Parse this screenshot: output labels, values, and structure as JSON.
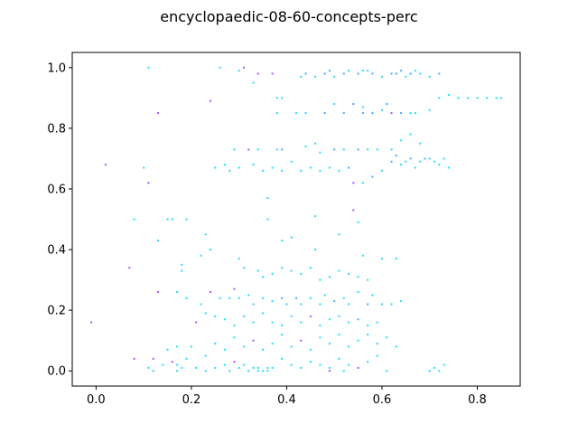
{
  "chart_data": {
    "type": "scatter",
    "title": "encyclopaedic-08-60-concepts-perc",
    "xlabel": "",
    "ylabel": "",
    "xlim": [
      -0.05,
      0.89
    ],
    "ylim": [
      -0.05,
      1.05
    ],
    "x_ticks": [
      0.0,
      0.2,
      0.4,
      0.6,
      0.8
    ],
    "y_ticks": [
      0.0,
      0.2,
      0.4,
      0.6,
      0.8,
      1.0
    ],
    "x_tick_labels": [
      "0.0",
      "0.2",
      "0.4",
      "0.6",
      "0.8"
    ],
    "y_tick_labels": [
      "0.0",
      "0.2",
      "0.4",
      "0.6",
      "0.8",
      "1.0"
    ],
    "grid": false,
    "colormap": "cool",
    "marker_size": "tiny",
    "colors": {
      "cyan": "#22ddff",
      "azure": "#44aaff",
      "violet": "#aa55ff",
      "magenta": "#dd44ff"
    },
    "points": [
      [
        0.11,
        1.0,
        0
      ],
      [
        0.26,
        1.0,
        0
      ],
      [
        0.31,
        1.0,
        2
      ],
      [
        0.33,
        0.95,
        0
      ],
      [
        0.3,
        0.99,
        0
      ],
      [
        0.34,
        0.98,
        2
      ],
      [
        0.37,
        0.98,
        2
      ],
      [
        0.43,
        0.97,
        0
      ],
      [
        0.44,
        0.98,
        1
      ],
      [
        0.46,
        0.97,
        0
      ],
      [
        0.48,
        0.98,
        1
      ],
      [
        0.5,
        0.97,
        0
      ],
      [
        0.52,
        0.98,
        1
      ],
      [
        0.53,
        0.99,
        0
      ],
      [
        0.55,
        0.98,
        1
      ],
      [
        0.56,
        0.99,
        0
      ],
      [
        0.58,
        0.98,
        1
      ],
      [
        0.6,
        0.97,
        0
      ],
      [
        0.62,
        0.98,
        1
      ],
      [
        0.64,
        0.99,
        1
      ],
      [
        0.65,
        0.97,
        0
      ],
      [
        0.66,
        0.98,
        1
      ],
      [
        0.68,
        0.98,
        0
      ],
      [
        0.7,
        0.97,
        0
      ],
      [
        0.72,
        0.98,
        1
      ],
      [
        0.57,
        0.99,
        0
      ],
      [
        0.63,
        0.98,
        1
      ],
      [
        0.67,
        0.99,
        0
      ],
      [
        0.49,
        0.99,
        1
      ],
      [
        0.38,
        0.9,
        0
      ],
      [
        0.39,
        0.9,
        0
      ],
      [
        0.24,
        0.89,
        2
      ],
      [
        0.13,
        0.85,
        2
      ],
      [
        0.38,
        0.85,
        0
      ],
      [
        0.42,
        0.85,
        0
      ],
      [
        0.44,
        0.85,
        0
      ],
      [
        0.48,
        0.85,
        1
      ],
      [
        0.5,
        0.88,
        0
      ],
      [
        0.52,
        0.85,
        1
      ],
      [
        0.54,
        0.88,
        1
      ],
      [
        0.56,
        0.87,
        0
      ],
      [
        0.58,
        0.85,
        1
      ],
      [
        0.6,
        0.86,
        0
      ],
      [
        0.62,
        0.85,
        2
      ],
      [
        0.64,
        0.85,
        1
      ],
      [
        0.66,
        0.85,
        0
      ],
      [
        0.67,
        0.85,
        0
      ],
      [
        0.7,
        0.86,
        0
      ],
      [
        0.72,
        0.9,
        0
      ],
      [
        0.74,
        0.91,
        0
      ],
      [
        0.76,
        0.9,
        0
      ],
      [
        0.78,
        0.9,
        0
      ],
      [
        0.8,
        0.9,
        0
      ],
      [
        0.82,
        0.9,
        0
      ],
      [
        0.84,
        0.9,
        0
      ],
      [
        0.85,
        0.9,
        0
      ],
      [
        0.61,
        0.88,
        1
      ],
      [
        0.56,
        0.85,
        1
      ],
      [
        0.29,
        0.73,
        0
      ],
      [
        0.32,
        0.73,
        2
      ],
      [
        0.34,
        0.73,
        0
      ],
      [
        0.38,
        0.73,
        0
      ],
      [
        0.39,
        0.73,
        1
      ],
      [
        0.44,
        0.74,
        0
      ],
      [
        0.46,
        0.75,
        0
      ],
      [
        0.47,
        0.72,
        0
      ],
      [
        0.5,
        0.73,
        1
      ],
      [
        0.52,
        0.73,
        0
      ],
      [
        0.55,
        0.73,
        1
      ],
      [
        0.57,
        0.73,
        0
      ],
      [
        0.59,
        0.73,
        0
      ],
      [
        0.62,
        0.73,
        0
      ],
      [
        0.64,
        0.76,
        0
      ],
      [
        0.66,
        0.78,
        0
      ],
      [
        0.68,
        0.75,
        0
      ],
      [
        0.25,
        0.67,
        0
      ],
      [
        0.27,
        0.68,
        0
      ],
      [
        0.28,
        0.66,
        0
      ],
      [
        0.3,
        0.67,
        0
      ],
      [
        0.33,
        0.68,
        0
      ],
      [
        0.35,
        0.66,
        0
      ],
      [
        0.37,
        0.67,
        0
      ],
      [
        0.39,
        0.66,
        0
      ],
      [
        0.41,
        0.69,
        0
      ],
      [
        0.43,
        0.66,
        0
      ],
      [
        0.45,
        0.67,
        0
      ],
      [
        0.47,
        0.66,
        0
      ],
      [
        0.49,
        0.67,
        0
      ],
      [
        0.51,
        0.66,
        0
      ],
      [
        0.53,
        0.67,
        1
      ],
      [
        0.54,
        0.62,
        2
      ],
      [
        0.56,
        0.62,
        0
      ],
      [
        0.58,
        0.64,
        1
      ],
      [
        0.6,
        0.66,
        0
      ],
      [
        0.62,
        0.69,
        1
      ],
      [
        0.64,
        0.68,
        0
      ],
      [
        0.66,
        0.7,
        1
      ],
      [
        0.68,
        0.69,
        0
      ],
      [
        0.7,
        0.7,
        0
      ],
      [
        0.72,
        0.68,
        0
      ],
      [
        0.74,
        0.67,
        0
      ],
      [
        0.02,
        0.68,
        2
      ],
      [
        0.1,
        0.67,
        0
      ],
      [
        0.11,
        0.62,
        2
      ],
      [
        0.63,
        0.71,
        1
      ],
      [
        0.65,
        0.69,
        0
      ],
      [
        0.67,
        0.67,
        0
      ],
      [
        0.69,
        0.7,
        1
      ],
      [
        0.71,
        0.69,
        0
      ],
      [
        0.73,
        0.7,
        0
      ],
      [
        0.36,
        0.57,
        0
      ],
      [
        0.46,
        0.51,
        0
      ],
      [
        0.54,
        0.53,
        2
      ],
      [
        0.55,
        0.49,
        0
      ],
      [
        0.08,
        0.5,
        0
      ],
      [
        0.15,
        0.5,
        0
      ],
      [
        0.16,
        0.5,
        0
      ],
      [
        0.19,
        0.5,
        0
      ],
      [
        0.36,
        0.5,
        0
      ],
      [
        0.23,
        0.45,
        0
      ],
      [
        0.13,
        0.43,
        0
      ],
      [
        0.24,
        0.4,
        0
      ],
      [
        0.39,
        0.43,
        0
      ],
      [
        0.41,
        0.44,
        0
      ],
      [
        0.46,
        0.4,
        0
      ],
      [
        0.51,
        0.45,
        0
      ],
      [
        0.56,
        0.38,
        0
      ],
      [
        0.6,
        0.37,
        0
      ],
      [
        0.63,
        0.37,
        0
      ],
      [
        0.07,
        0.34,
        2
      ],
      [
        0.18,
        0.35,
        0
      ],
      [
        0.18,
        0.33,
        0
      ],
      [
        0.22,
        0.38,
        0
      ],
      [
        0.3,
        0.37,
        0
      ],
      [
        0.31,
        0.34,
        0
      ],
      [
        0.34,
        0.33,
        0
      ],
      [
        0.35,
        0.31,
        0
      ],
      [
        0.37,
        0.32,
        0
      ],
      [
        0.39,
        0.34,
        0
      ],
      [
        0.41,
        0.33,
        0
      ],
      [
        0.43,
        0.32,
        0
      ],
      [
        0.45,
        0.34,
        0
      ],
      [
        0.47,
        0.3,
        0
      ],
      [
        0.49,
        0.31,
        0
      ],
      [
        0.51,
        0.33,
        0
      ],
      [
        0.53,
        0.32,
        0
      ],
      [
        0.55,
        0.31,
        0
      ],
      [
        0.57,
        0.3,
        0
      ],
      [
        0.13,
        0.26,
        2
      ],
      [
        0.17,
        0.26,
        0
      ],
      [
        0.19,
        0.24,
        0
      ],
      [
        0.22,
        0.22,
        0
      ],
      [
        0.24,
        0.26,
        2
      ],
      [
        0.26,
        0.24,
        0
      ],
      [
        0.28,
        0.24,
        0
      ],
      [
        0.29,
        0.27,
        2
      ],
      [
        0.3,
        0.24,
        0
      ],
      [
        0.32,
        0.25,
        0
      ],
      [
        0.33,
        0.22,
        0
      ],
      [
        0.35,
        0.24,
        0
      ],
      [
        0.37,
        0.23,
        0
      ],
      [
        0.39,
        0.24,
        1
      ],
      [
        0.4,
        0.22,
        0
      ],
      [
        0.42,
        0.24,
        1
      ],
      [
        0.43,
        0.22,
        0
      ],
      [
        0.45,
        0.24,
        0
      ],
      [
        0.47,
        0.22,
        0
      ],
      [
        0.48,
        0.25,
        0
      ],
      [
        0.5,
        0.23,
        1
      ],
      [
        0.52,
        0.24,
        0
      ],
      [
        0.53,
        0.22,
        0
      ],
      [
        0.55,
        0.26,
        0
      ],
      [
        0.57,
        0.22,
        1
      ],
      [
        0.58,
        0.25,
        0
      ],
      [
        0.6,
        0.22,
        0
      ],
      [
        0.62,
        0.22,
        0
      ],
      [
        0.64,
        0.23,
        0
      ],
      [
        0.21,
        0.16,
        2
      ],
      [
        0.23,
        0.19,
        0
      ],
      [
        0.25,
        0.18,
        0
      ],
      [
        0.27,
        0.17,
        0
      ],
      [
        0.29,
        0.15,
        0
      ],
      [
        0.31,
        0.18,
        0
      ],
      [
        0.33,
        0.16,
        0
      ],
      [
        0.35,
        0.19,
        0
      ],
      [
        0.37,
        0.16,
        0
      ],
      [
        0.39,
        0.15,
        0
      ],
      [
        0.41,
        0.18,
        0
      ],
      [
        0.43,
        0.16,
        0
      ],
      [
        0.45,
        0.18,
        2
      ],
      [
        0.47,
        0.15,
        0
      ],
      [
        0.49,
        0.17,
        0
      ],
      [
        0.51,
        0.18,
        0
      ],
      [
        0.53,
        0.16,
        0
      ],
      [
        0.55,
        0.17,
        1
      ],
      [
        0.57,
        0.15,
        0
      ],
      [
        0.59,
        0.16,
        0
      ],
      [
        -0.01,
        0.16,
        2
      ],
      [
        0.15,
        0.07,
        0
      ],
      [
        0.17,
        0.08,
        0
      ],
      [
        0.2,
        0.08,
        0
      ],
      [
        0.23,
        0.05,
        0
      ],
      [
        0.25,
        0.09,
        0
      ],
      [
        0.27,
        0.07,
        0
      ],
      [
        0.29,
        0.11,
        0
      ],
      [
        0.31,
        0.08,
        0
      ],
      [
        0.33,
        0.1,
        2
      ],
      [
        0.35,
        0.07,
        0
      ],
      [
        0.37,
        0.09,
        0
      ],
      [
        0.39,
        0.12,
        0
      ],
      [
        0.41,
        0.08,
        0
      ],
      [
        0.43,
        0.1,
        2
      ],
      [
        0.45,
        0.07,
        0
      ],
      [
        0.47,
        0.11,
        0
      ],
      [
        0.49,
        0.09,
        0
      ],
      [
        0.51,
        0.12,
        0
      ],
      [
        0.53,
        0.08,
        0
      ],
      [
        0.55,
        0.1,
        0
      ],
      [
        0.57,
        0.12,
        0
      ],
      [
        0.59,
        0.09,
        0
      ],
      [
        0.61,
        0.11,
        0
      ],
      [
        0.63,
        0.08,
        0
      ],
      [
        0.08,
        0.04,
        2
      ],
      [
        0.12,
        0.04,
        2
      ],
      [
        0.14,
        0.02,
        0
      ],
      [
        0.16,
        0.03,
        2
      ],
      [
        0.17,
        0.02,
        0
      ],
      [
        0.19,
        0.04,
        0
      ],
      [
        0.21,
        0.01,
        0
      ],
      [
        0.23,
        0.0,
        0
      ],
      [
        0.25,
        0.01,
        0
      ],
      [
        0.27,
        0.02,
        0
      ],
      [
        0.29,
        0.03,
        2
      ],
      [
        0.31,
        0.02,
        0
      ],
      [
        0.33,
        0.01,
        0
      ],
      [
        0.34,
        0.0,
        0
      ],
      [
        0.35,
        0.0,
        0
      ],
      [
        0.36,
        0.0,
        0
      ],
      [
        0.37,
        0.01,
        0
      ],
      [
        0.39,
        0.04,
        0
      ],
      [
        0.41,
        0.02,
        0
      ],
      [
        0.43,
        0.01,
        0
      ],
      [
        0.45,
        0.03,
        0
      ],
      [
        0.47,
        0.02,
        0
      ],
      [
        0.49,
        0.01,
        0
      ],
      [
        0.51,
        0.04,
        0
      ],
      [
        0.53,
        0.02,
        0
      ],
      [
        0.55,
        0.01,
        2
      ],
      [
        0.57,
        0.03,
        0
      ],
      [
        0.59,
        0.05,
        0
      ],
      [
        0.61,
        0.0,
        0
      ],
      [
        0.11,
        0.01,
        0
      ],
      [
        0.12,
        0.0,
        0
      ],
      [
        0.17,
        0.0,
        0
      ],
      [
        0.18,
        0.01,
        0
      ],
      [
        0.28,
        0.0,
        0
      ],
      [
        0.3,
        0.01,
        0
      ],
      [
        0.32,
        0.0,
        0
      ],
      [
        0.34,
        0.01,
        0
      ],
      [
        0.36,
        0.01,
        0
      ],
      [
        0.49,
        0.0,
        2
      ],
      [
        0.52,
        0.0,
        0
      ],
      [
        0.7,
        0.0,
        0
      ],
      [
        0.71,
        0.01,
        0
      ],
      [
        0.73,
        0.02,
        0
      ],
      [
        0.72,
        0.0,
        0
      ]
    ]
  }
}
